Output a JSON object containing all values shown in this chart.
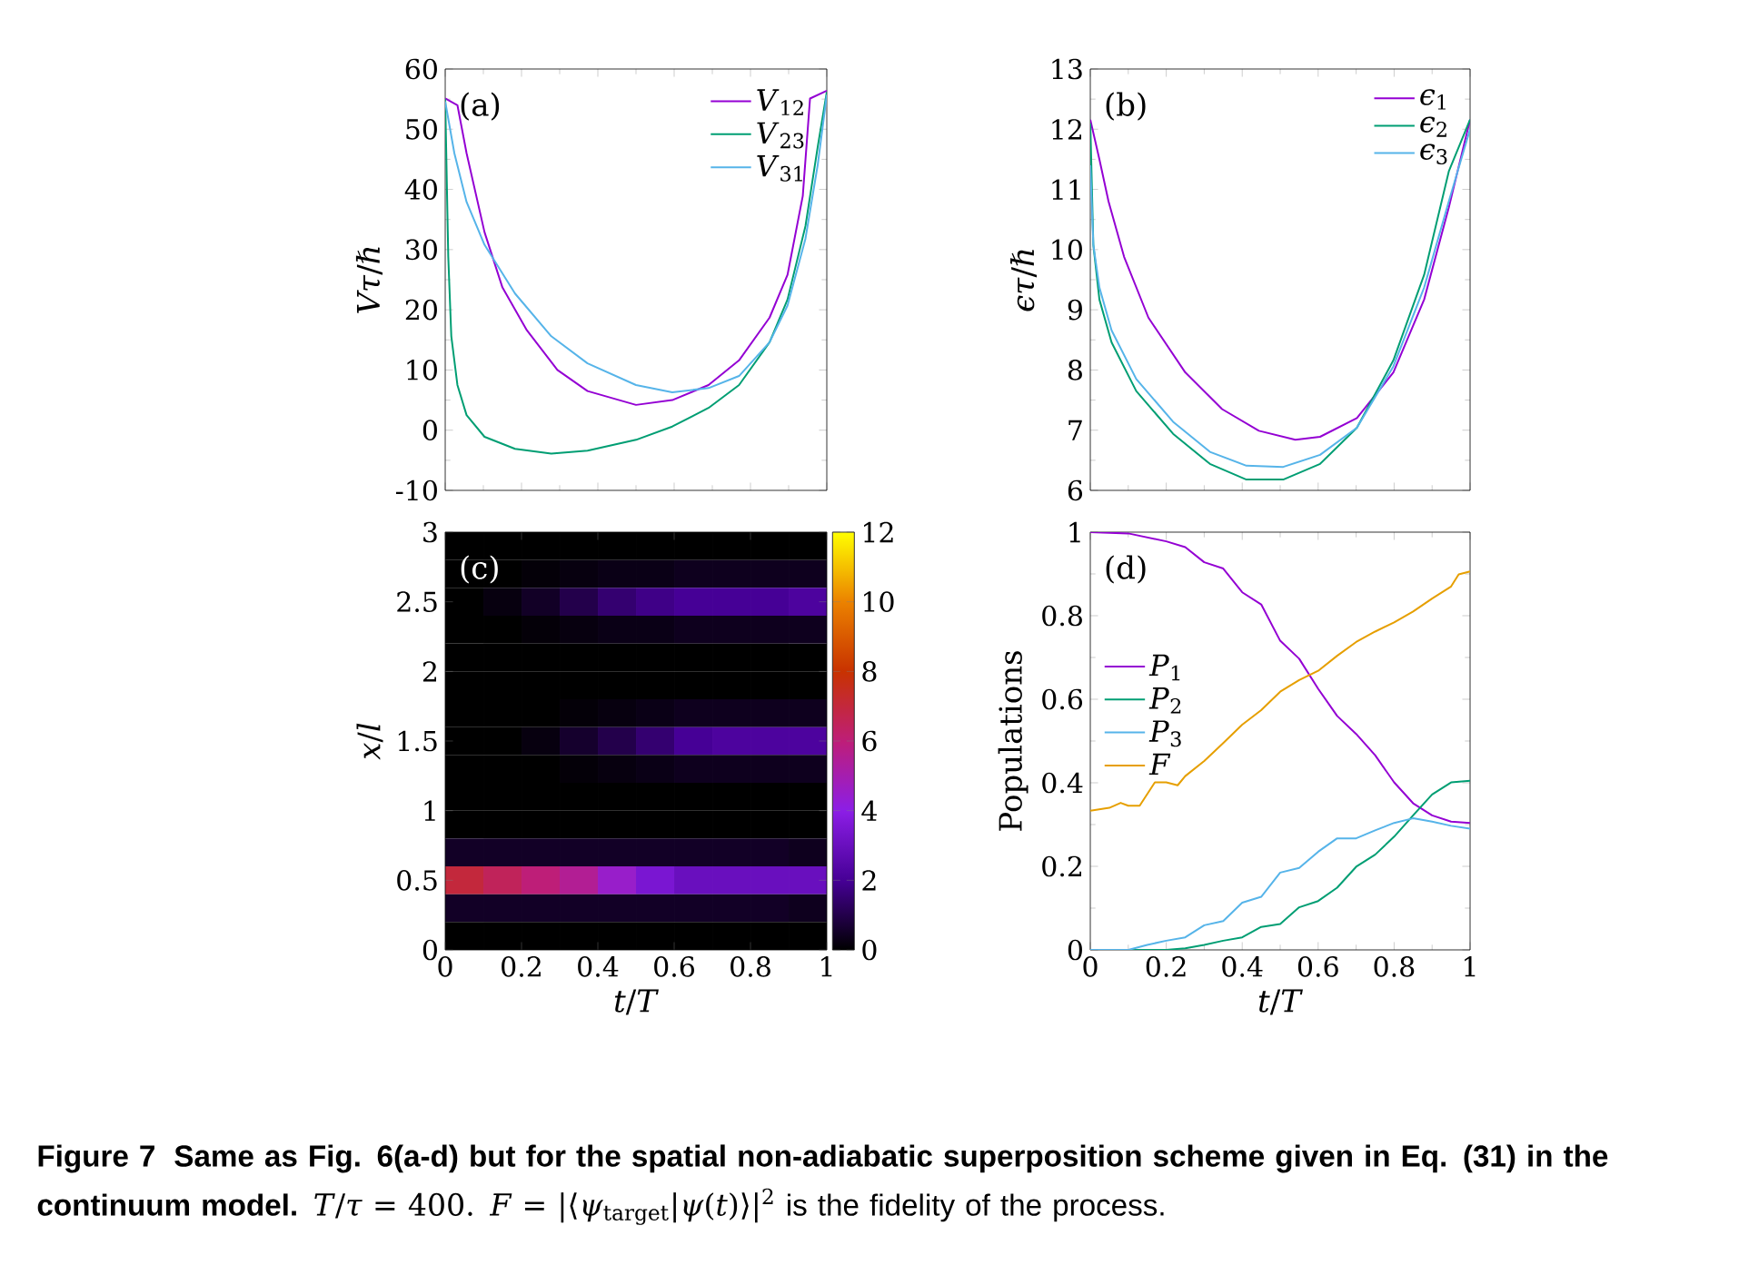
{
  "chart_data": [
    {
      "type": "line",
      "xlabel": null,
      "ylabel": "*Vτ*/*ℏ*",
      "xlim": [
        0,
        1
      ],
      "xticks": [
        0,
        0.2,
        0.4,
        0.6,
        0.8,
        1
      ],
      "ylim": [
        -10,
        60
      ],
      "yticks": [
        -10,
        0,
        10,
        20,
        30,
        40,
        50,
        60
      ],
      "tick_labels": "y",
      "legend": "top right",
      "annotations": [
        "(a)",
        "Figure 7",
        "Same as Fig. 6(a-d) but for the spatial non-adiabatic superposition scheme given in Eq. (31) in the continuum model.",
        "*T*/*τ* = 400.",
        "*F* = |⟨*ψ*$_{target}$|*ψ*(*t*)⟩|$^{2}$",
        "is the fidelity of the process."
      ],
      "series": [
        {
          "name": "*V*$_{12}$",
          "color": "#9400d3",
          "x": [
            0,
            0.032,
            0.056,
            0.103,
            0.15,
            0.214,
            0.294,
            0.373,
            0.5,
            0.595,
            0.69,
            0.77,
            0.85,
            0.897,
            0.937,
            0.956,
            1
          ],
          "values": [
            55.1,
            54,
            46,
            32.9,
            23.7,
            16.6,
            10,
            6.5,
            4.2,
            5,
            7.5,
            11.6,
            18.7,
            25.8,
            38.9,
            55.1,
            56.4
          ]
        },
        {
          "name": "*V*$_{23}$",
          "color": "#009e73",
          "x": [
            0,
            0.008,
            0.016,
            0.032,
            0.056,
            0.103,
            0.183,
            0.278,
            0.373,
            0.5,
            0.595,
            0.69,
            0.77,
            0.85,
            0.897,
            0.944,
            0.976,
            1
          ],
          "values": [
            55,
            28.8,
            15.6,
            7.5,
            2.5,
            -1.1,
            -3.1,
            -3.9,
            -3.4,
            -1.6,
            0.6,
            3.7,
            7.5,
            14.6,
            21.7,
            33.9,
            47,
            56.2
          ]
        },
        {
          "name": "*V*$_{31}$",
          "color": "#56b4e9",
          "x": [
            0,
            0.024,
            0.056,
            0.103,
            0.183,
            0.278,
            0.373,
            0.5,
            0.595,
            0.69,
            0.77,
            0.85,
            0.897,
            0.944,
            0.976,
            1
          ],
          "values": [
            54.6,
            46,
            37.9,
            30.8,
            22.7,
            15.6,
            11.1,
            7.5,
            6.3,
            7,
            9,
            14.6,
            20.7,
            31.8,
            44,
            55.7
          ]
        }
      ]
    },
    {
      "type": "line",
      "ylabel": "*ϵτ*/*ℏ*",
      "xlim": [
        0,
        1
      ],
      "xticks": [
        0,
        0.2,
        0.4,
        0.6,
        0.8,
        1
      ],
      "ylim": [
        6,
        13
      ],
      "yticks": [
        6,
        7,
        8,
        9,
        10,
        11,
        12,
        13
      ],
      "tick_labels": "y",
      "legend": "top right",
      "annotations": [
        "(b)"
      ],
      "series": [
        {
          "name": "*ϵ*$_{1}$",
          "color": "#9400d3",
          "x": [
            0,
            0.024,
            0.048,
            0.089,
            0.153,
            0.25,
            0.347,
            0.444,
            0.54,
            0.605,
            0.702,
            0.798,
            0.879,
            0.944,
            1
          ],
          "values": [
            12.16,
            11.5,
            10.8,
            9.88,
            8.87,
            7.96,
            7.35,
            6.99,
            6.84,
            6.89,
            7.2,
            7.96,
            9.17,
            10.7,
            12.16
          ]
        },
        {
          "name": "*ϵ*$_{2}$",
          "color": "#009e73",
          "x": [
            0,
            0.008,
            0.024,
            0.056,
            0.121,
            0.218,
            0.315,
            0.411,
            0.508,
            0.605,
            0.702,
            0.798,
            0.879,
            0.944,
            1
          ],
          "values": [
            12.1,
            10.08,
            9.17,
            8.46,
            7.65,
            6.94,
            6.44,
            6.18,
            6.18,
            6.44,
            7.04,
            8.16,
            9.58,
            11.3,
            12.16
          ]
        },
        {
          "name": "*ϵ*$_{3}$",
          "color": "#56b4e9",
          "x": [
            0,
            0.008,
            0.024,
            0.056,
            0.121,
            0.218,
            0.315,
            0.411,
            0.508,
            0.605,
            0.702,
            0.798,
            0.879,
            0.944,
            1
          ],
          "values": [
            11.4,
            10.08,
            9.37,
            8.66,
            7.85,
            7.14,
            6.64,
            6.41,
            6.39,
            6.59,
            7.04,
            8.06,
            9.37,
            10.8,
            12.0
          ]
        }
      ]
    },
    {
      "type": "heatmap",
      "xlabel": "*t*/*T*",
      "ylabel": "*x*/*l*",
      "xlim": [
        0,
        1
      ],
      "xticks": [
        0,
        0.2,
        0.4,
        0.6,
        0.8,
        1
      ],
      "ylim": [
        0,
        3
      ],
      "yticks": [
        0,
        0.5,
        1,
        1.5,
        2,
        2.5,
        3
      ],
      "clim": [
        0,
        12
      ],
      "cticks": [
        0,
        2,
        4,
        6,
        8,
        10,
        12
      ],
      "annotations": [
        "(c)"
      ],
      "cells": [
        [
          0,
          0,
          0,
          0,
          0,
          0,
          0,
          0,
          0,
          0
        ],
        [
          0,
          0,
          0.1,
          0.2,
          0.3,
          0.3,
          0.4,
          0.4,
          0.4,
          0.4
        ],
        [
          0,
          0.2,
          0.5,
          1,
          1.5,
          1.8,
          2,
          2,
          2,
          2.2
        ],
        [
          0,
          0,
          0.1,
          0.2,
          0.3,
          0.3,
          0.4,
          0.4,
          0.4,
          0.4
        ],
        [
          0,
          0,
          0,
          0,
          0,
          0,
          0,
          0,
          0,
          0
        ],
        [
          0,
          0,
          0,
          0,
          0,
          0,
          0,
          0,
          0,
          0
        ],
        [
          0,
          0,
          0,
          0.1,
          0.2,
          0.3,
          0.4,
          0.4,
          0.4,
          0.4
        ],
        [
          0,
          0,
          0.2,
          0.6,
          1,
          1.5,
          2,
          2.2,
          2.2,
          2.2
        ],
        [
          0,
          0,
          0,
          0.1,
          0.2,
          0.3,
          0.4,
          0.4,
          0.4,
          0.4
        ],
        [
          0,
          0,
          0,
          0,
          0,
          0,
          0,
          0,
          0,
          0
        ],
        [
          0,
          0,
          0,
          0,
          0,
          0,
          0,
          0,
          0,
          0
        ],
        [
          0.5,
          0.5,
          0.5,
          0.5,
          0.5,
          0.5,
          0.5,
          0.5,
          0.5,
          0.4
        ],
        [
          7,
          6.5,
          6,
          5.5,
          4.5,
          3.5,
          3,
          3,
          3,
          3
        ],
        [
          0.5,
          0.5,
          0.5,
          0.5,
          0.5,
          0.5,
          0.5,
          0.5,
          0.5,
          0.4
        ],
        [
          0,
          0,
          0,
          0,
          0,
          0,
          0,
          0,
          0,
          0
        ]
      ]
    },
    {
      "type": "line",
      "xlabel": "*t*/*T*",
      "ylabel": "Populations",
      "xlim": [
        0,
        1
      ],
      "xticks": [
        0,
        0.2,
        0.4,
        0.6,
        0.8,
        1
      ],
      "ylim": [
        0,
        1
      ],
      "yticks": [
        0,
        0.2,
        0.4,
        0.6,
        0.8,
        1
      ],
      "legend": "left",
      "annotations": [
        "(d)"
      ],
      "series": [
        {
          "name": "*P*$_{1}$",
          "color": "#9400d3",
          "x": [
            0,
            0.1,
            0.2,
            0.25,
            0.3,
            0.35,
            0.4,
            0.45,
            0.5,
            0.55,
            0.6,
            0.65,
            0.7,
            0.75,
            0.8,
            0.85,
            0.9,
            0.95,
            1
          ],
          "values": [
            1,
            0.997,
            0.978,
            0.964,
            0.928,
            0.913,
            0.856,
            0.827,
            0.74,
            0.697,
            0.625,
            0.56,
            0.517,
            0.466,
            0.401,
            0.351,
            0.322,
            0.307,
            0.304
          ]
        },
        {
          "name": "*P*$_{2}$",
          "color": "#009e73",
          "x": [
            0,
            0.1,
            0.2,
            0.25,
            0.3,
            0.35,
            0.4,
            0.45,
            0.5,
            0.55,
            0.6,
            0.65,
            0.7,
            0.75,
            0.8,
            0.85,
            0.9,
            0.95,
            1
          ],
          "values": [
            0,
            0,
            0,
            0.004,
            0.012,
            0.022,
            0.03,
            0.055,
            0.062,
            0.102,
            0.117,
            0.149,
            0.199,
            0.228,
            0.271,
            0.322,
            0.372,
            0.401,
            0.405
          ]
        },
        {
          "name": "*P*$_{3}$",
          "color": "#56b4e9",
          "x": [
            0,
            0.1,
            0.15,
            0.2,
            0.25,
            0.3,
            0.35,
            0.4,
            0.45,
            0.5,
            0.55,
            0.6,
            0.65,
            0.7,
            0.75,
            0.8,
            0.85,
            0.9,
            0.95,
            1
          ],
          "values": [
            0,
            0,
            0.012,
            0.022,
            0.03,
            0.059,
            0.069,
            0.113,
            0.127,
            0.185,
            0.196,
            0.235,
            0.267,
            0.267,
            0.286,
            0.304,
            0.315,
            0.307,
            0.297,
            0.29
          ]
        },
        {
          "name": "*F*",
          "color": "#e69f00",
          "x": [
            0,
            0.05,
            0.08,
            0.1,
            0.13,
            0.17,
            0.2,
            0.23,
            0.25,
            0.3,
            0.35,
            0.4,
            0.45,
            0.5,
            0.55,
            0.6,
            0.65,
            0.7,
            0.75,
            0.8,
            0.85,
            0.9,
            0.95,
            0.97,
            1
          ],
          "values": [
            0.333,
            0.34,
            0.352,
            0.345,
            0.345,
            0.401,
            0.401,
            0.394,
            0.416,
            0.452,
            0.495,
            0.539,
            0.574,
            0.618,
            0.646,
            0.668,
            0.704,
            0.737,
            0.762,
            0.784,
            0.81,
            0.841,
            0.87,
            0.899,
            0.906
          ]
        }
      ]
    }
  ]
}
